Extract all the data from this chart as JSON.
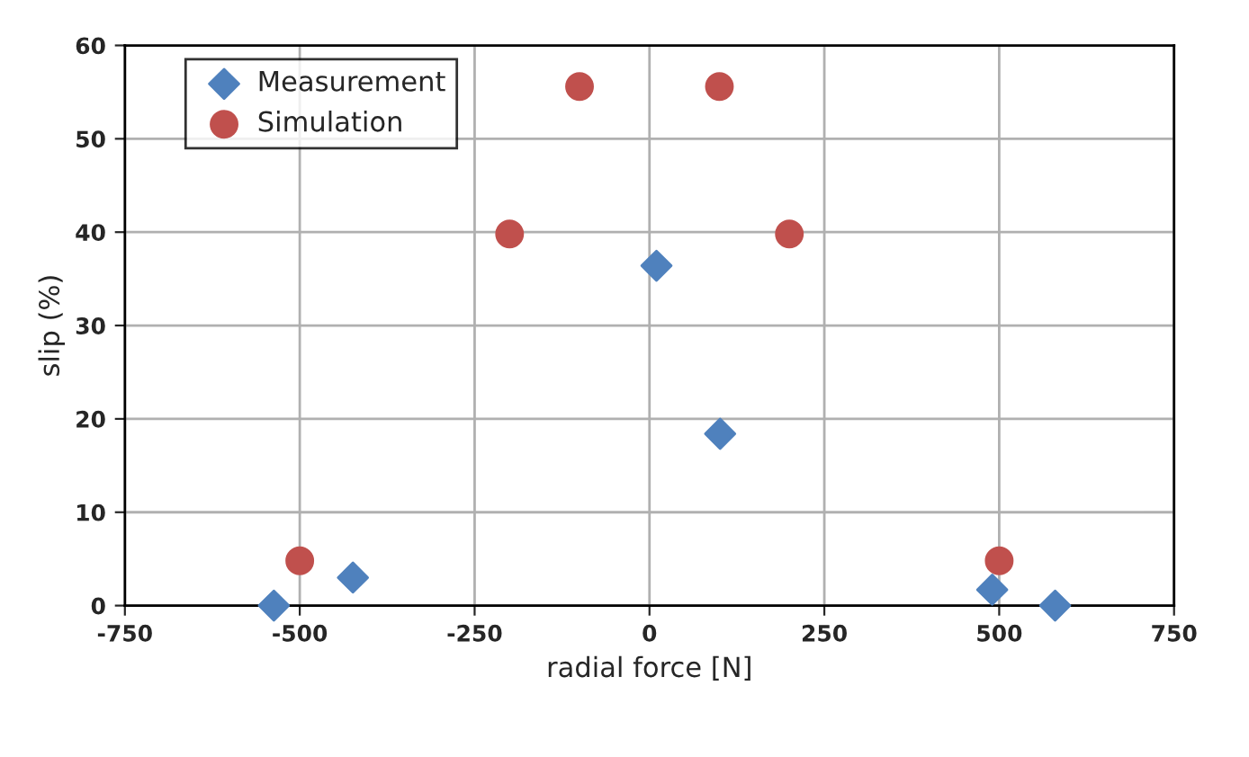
{
  "chart_data": {
    "type": "scatter",
    "xlabel": "radial force [N]",
    "ylabel": "slip (%)",
    "xlim": [
      -750,
      750
    ],
    "xticks": [
      -750,
      -500,
      -250,
      0,
      250,
      500,
      750
    ],
    "ylim": [
      0,
      60
    ],
    "yticks": [
      0,
      10,
      20,
      30,
      40,
      50,
      60
    ],
    "grid": true,
    "legend": "top left",
    "series": [
      {
        "name": "Measurement",
        "color": "#4f81bd",
        "marker": "diamond",
        "x": [
          -537,
          -424,
          10,
          101,
          490,
          580
        ],
        "values": [
          0,
          3.0,
          36.4,
          18.4,
          1.7,
          0
        ]
      },
      {
        "name": "Simulation",
        "color": "#c0504d",
        "marker": "circle",
        "x": [
          -500,
          -200,
          -100,
          100,
          200,
          500
        ],
        "values": [
          4.8,
          39.8,
          55.6,
          55.6,
          39.8,
          4.8
        ]
      }
    ]
  }
}
